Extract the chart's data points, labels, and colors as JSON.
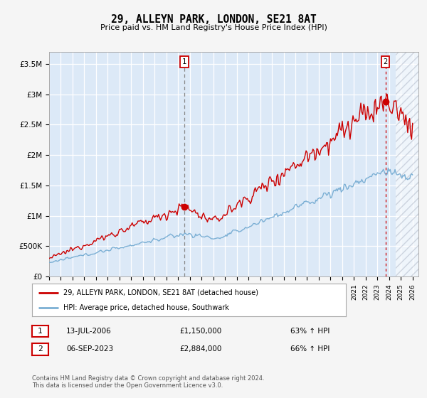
{
  "title": "29, ALLEYN PARK, LONDON, SE21 8AT",
  "subtitle": "Price paid vs. HM Land Registry's House Price Index (HPI)",
  "ylabel_ticks": [
    "£0",
    "£500K",
    "£1M",
    "£1.5M",
    "£2M",
    "£2.5M",
    "£3M",
    "£3.5M"
  ],
  "ylabel_values": [
    0,
    500000,
    1000000,
    1500000,
    2000000,
    2500000,
    3000000,
    3500000
  ],
  "ylim": [
    0,
    3700000
  ],
  "xlim_start": 1995.0,
  "xlim_end": 2026.5,
  "red_line_color": "#cc0000",
  "blue_line_color": "#7bafd4",
  "plot_bg_color": "#dce9f7",
  "grid_color": "#ffffff",
  "hatch_start": 2024.58,
  "marker1_x": 2006.54,
  "marker1_y": 1150000,
  "marker2_x": 2023.68,
  "marker2_y": 2884000,
  "annotation1": "13-JUL-2006",
  "annotation1_price": "£1,150,000",
  "annotation1_hpi": "63% ↑ HPI",
  "annotation2": "06-SEP-2023",
  "annotation2_price": "£2,884,000",
  "annotation2_hpi": "66% ↑ HPI",
  "legend_label1": "29, ALLEYN PARK, LONDON, SE21 8AT (detached house)",
  "legend_label2": "HPI: Average price, detached house, Southwark",
  "footer": "Contains HM Land Registry data © Crown copyright and database right 2024.\nThis data is licensed under the Open Government Licence v3.0.",
  "x_ticks": [
    1995,
    1996,
    1997,
    1998,
    1999,
    2000,
    2001,
    2002,
    2003,
    2004,
    2005,
    2006,
    2007,
    2008,
    2009,
    2010,
    2011,
    2012,
    2013,
    2014,
    2015,
    2016,
    2017,
    2018,
    2019,
    2020,
    2021,
    2022,
    2023,
    2024,
    2025,
    2026
  ],
  "fig_width": 6.0,
  "fig_height": 5.6,
  "dpi": 100
}
